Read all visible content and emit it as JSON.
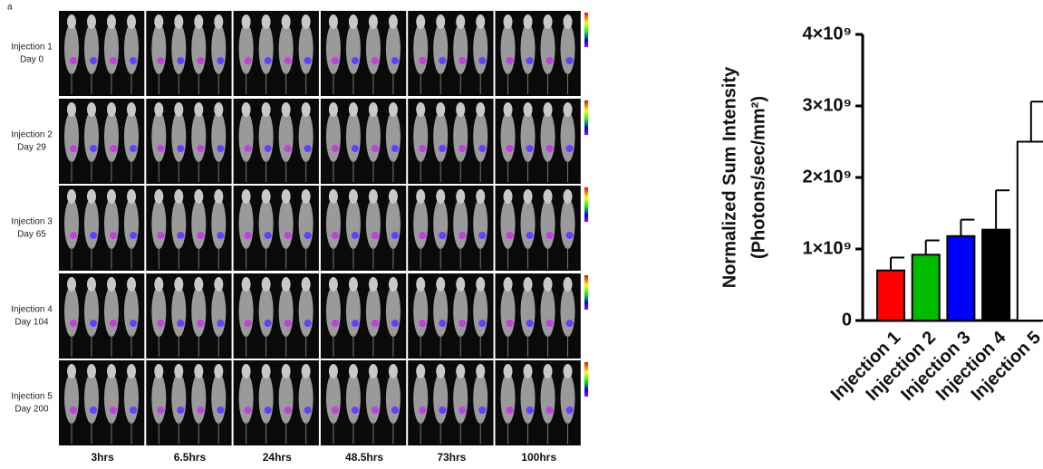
{
  "figure": {
    "panel_label": "a",
    "rows": [
      [
        "Injection 1",
        "Day 0"
      ],
      [
        "Injection 2",
        "Day 29"
      ],
      [
        "Injection 3",
        "Day 65"
      ],
      [
        "Injection 4",
        "Day 104"
      ],
      [
        "Injection 5",
        "Day 200"
      ]
    ],
    "columns": [
      "3hrs",
      "6.5hrs",
      "24hrs",
      "48.5hrs",
      "73hrs",
      "100hrs"
    ]
  },
  "chart_data": {
    "type": "bar",
    "ylabel": [
      "Normalized Sum Intensity",
      "(Photons/sec/mm²)"
    ],
    "categories": [
      "Injection 1",
      "Injection 2",
      "Injection 3",
      "Injection 4",
      "Injection 5"
    ],
    "values": [
      700000000,
      920000000,
      1180000000,
      1270000000,
      2500000000
    ],
    "errors": [
      180000000,
      200000000,
      230000000,
      550000000,
      560000000
    ],
    "colors": [
      "#ff0000",
      "#00bb00",
      "#0000ff",
      "#000000",
      "#ffffff"
    ],
    "ylim": [
      0,
      4000000000
    ],
    "yticks": [
      0,
      {
        "value": 1000000000,
        "label": "1×10⁹"
      },
      {
        "value": 2000000000,
        "label": "2×10⁹"
      },
      {
        "value": 3000000000,
        "label": "3×10⁹"
      },
      {
        "value": 4000000000,
        "label": "4×10⁹"
      }
    ]
  }
}
